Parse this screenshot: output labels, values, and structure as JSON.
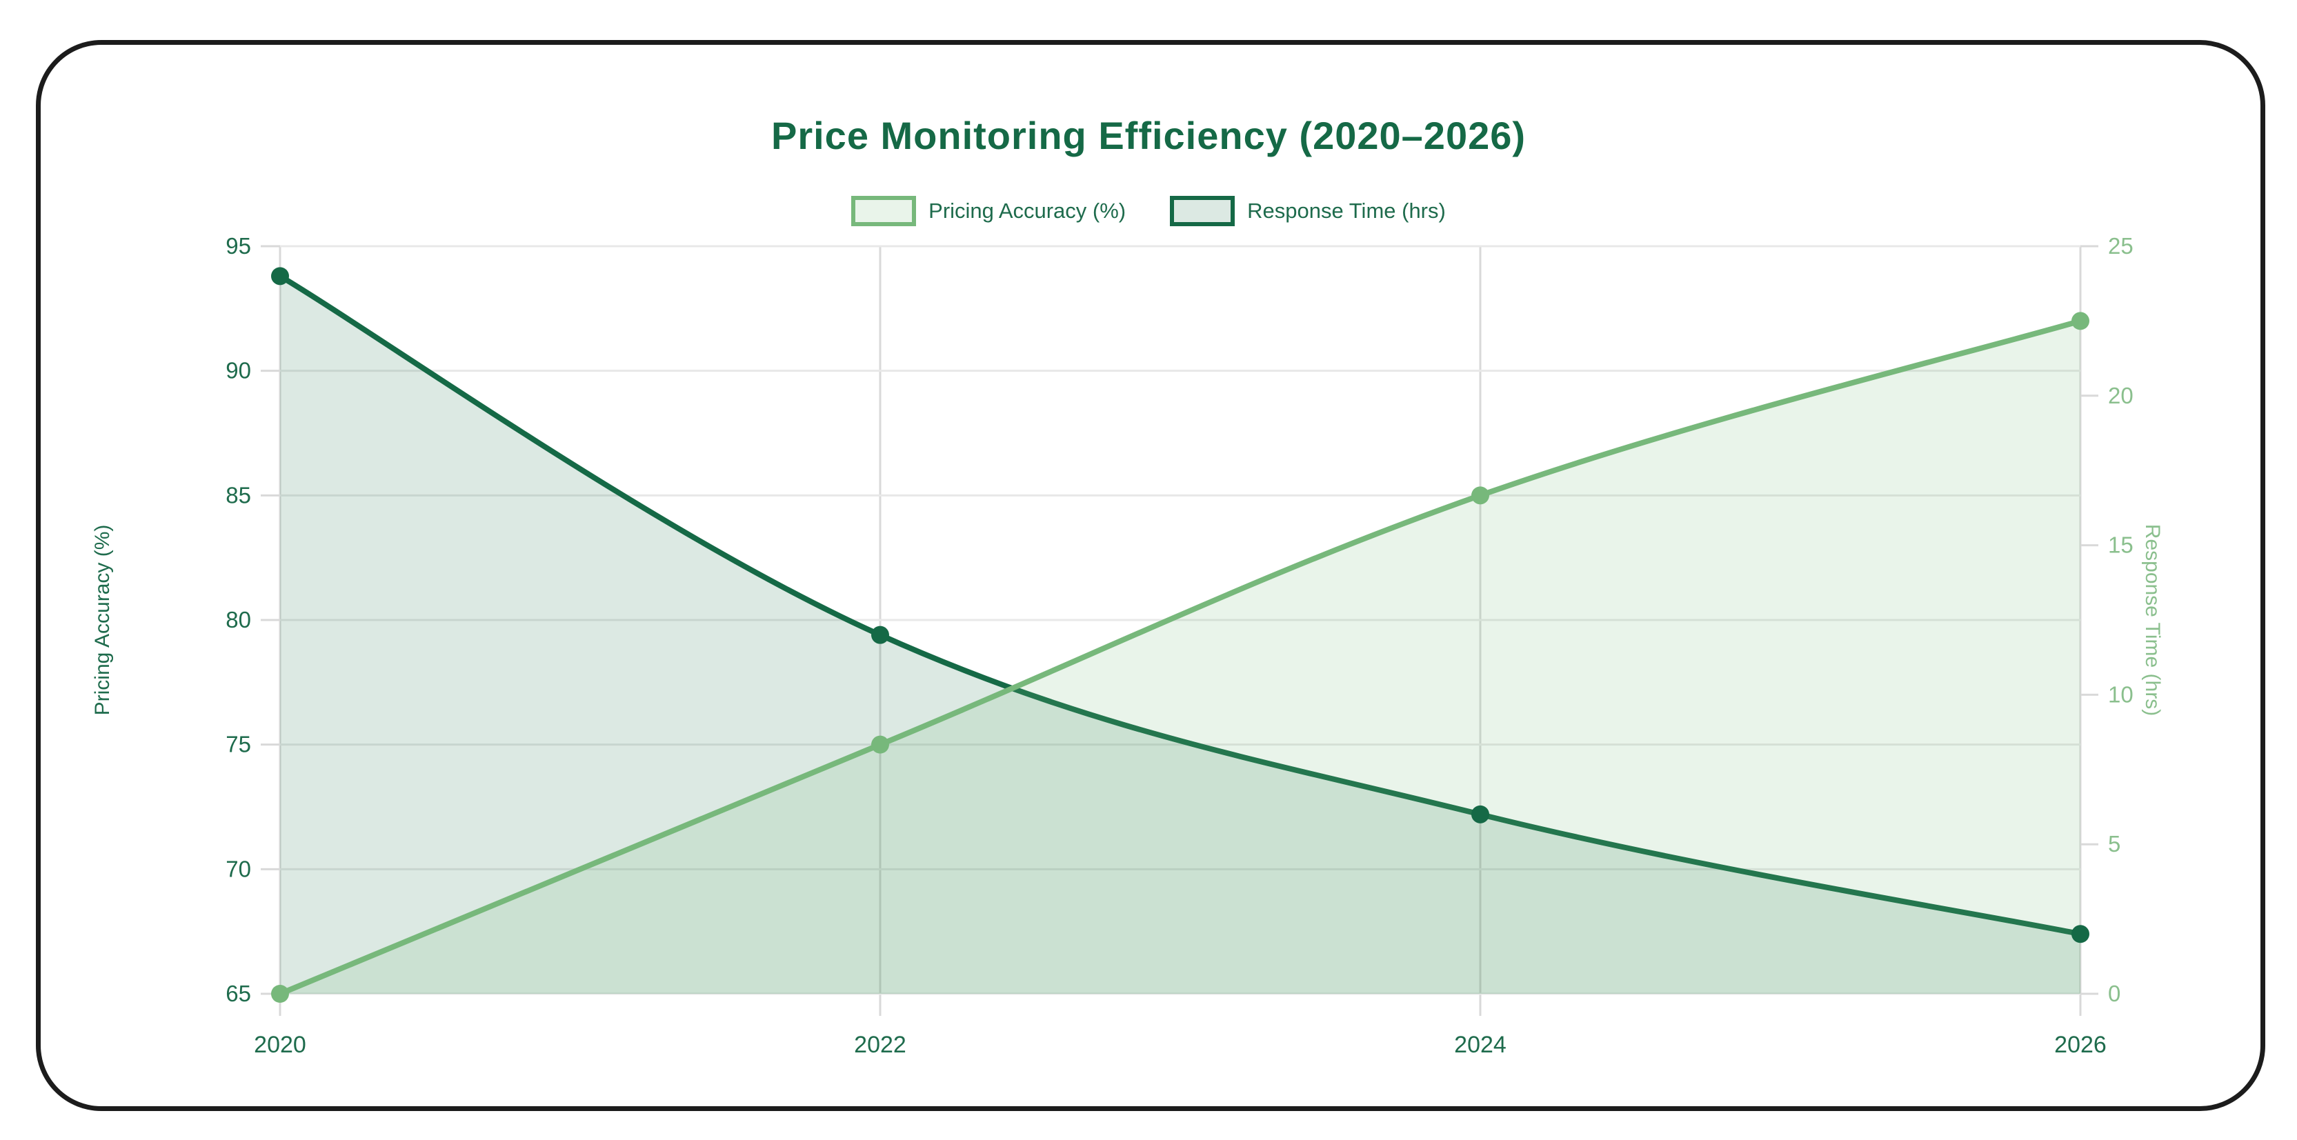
{
  "chart_data": {
    "type": "line",
    "title": "Price Monitoring Efficiency (2020–2026)",
    "categories": [
      "2020",
      "2022",
      "2024",
      "2026"
    ],
    "series": [
      {
        "name": "Pricing Accuracy (%)",
        "axis": "left",
        "values": [
          65,
          75,
          85,
          92
        ],
        "color": "#77b87b",
        "fill": "rgba(119,184,123,0.16)"
      },
      {
        "name": "Response Time (hrs)",
        "axis": "right",
        "values": [
          24,
          12,
          6,
          2
        ],
        "color": "#156946",
        "fill": "rgba(21,105,70,0.15)"
      }
    ],
    "left_axis": {
      "label": "Pricing Accuracy (%)",
      "min": 65,
      "max": 95,
      "ticks": [
        65,
        70,
        75,
        80,
        85,
        90,
        95
      ]
    },
    "right_axis": {
      "label": "Response Time (hrs)",
      "min": 0,
      "max": 25,
      "ticks": [
        0,
        5,
        10,
        15,
        20,
        25
      ]
    },
    "grid": true,
    "legend_position": "top",
    "curve_tension": 0.18
  },
  "colors": {
    "title_text": "#156946",
    "axis_text_dark": "#1e6b4c",
    "axis_text_light": "#8abf8d",
    "grid_horizontal": "#e8e8e8",
    "grid_vertical": "#d9d9d9",
    "tick_mark": "#d9d9d9",
    "frame_border": "#1c1c1c",
    "background": "#ffffff"
  }
}
